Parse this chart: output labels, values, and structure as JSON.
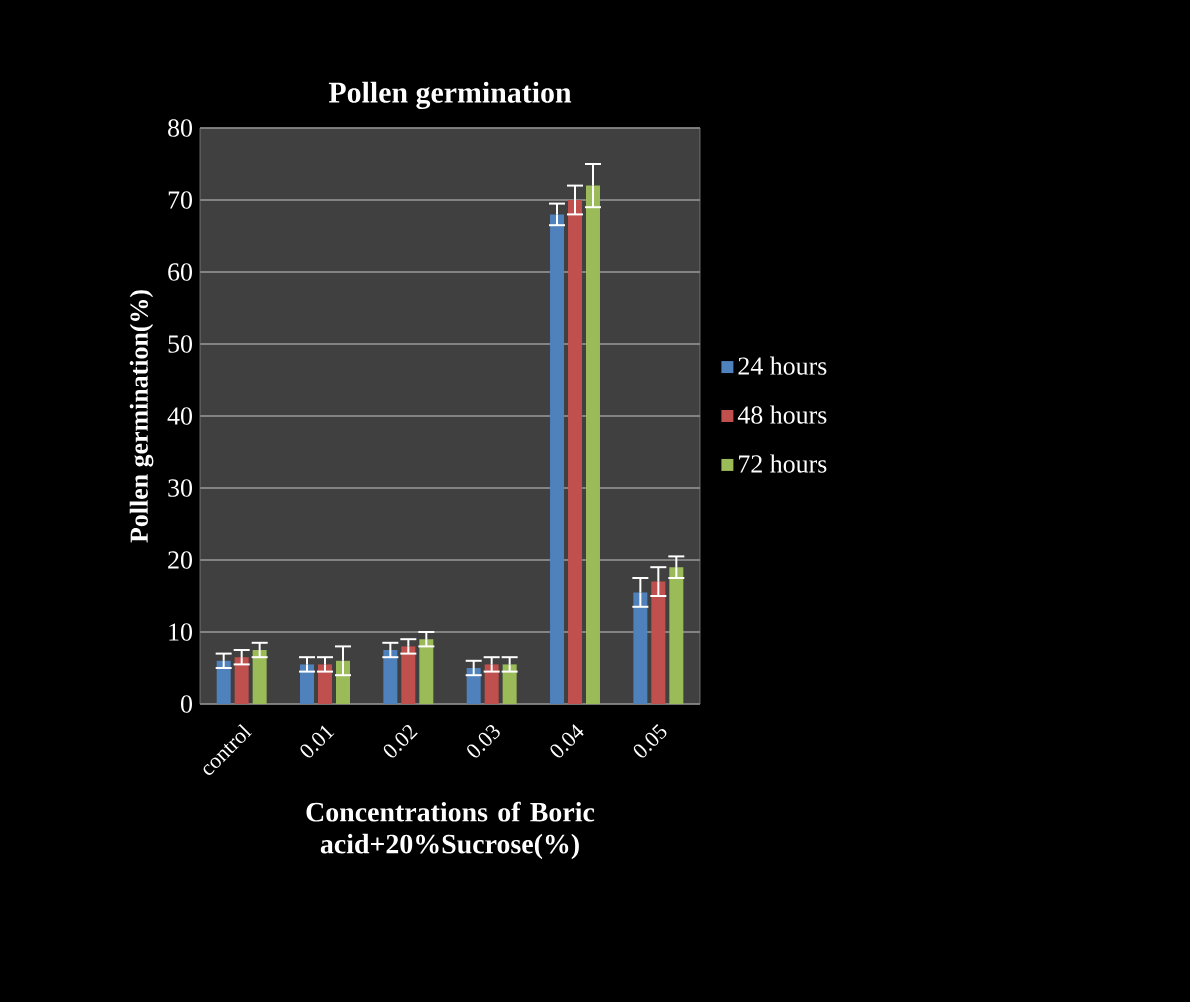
{
  "chart_data": {
    "type": "bar",
    "title": "Pollen germination",
    "xlabel": "Concentrations of Boric acid+20%Sucrose(%)",
    "ylabel": "Pollen germination(%)",
    "categories": [
      "control",
      "0.01",
      "0.02",
      "0.03",
      "0.04",
      "0.05"
    ],
    "series": [
      {
        "name": "24 hours",
        "color": "#4f81bd",
        "values": [
          6,
          5.5,
          7.5,
          5,
          68,
          15.5
        ],
        "errors": [
          1,
          1,
          1,
          1,
          1.5,
          2
        ]
      },
      {
        "name": "48 hours",
        "color": "#c0504d",
        "values": [
          6.5,
          5.5,
          8,
          5.5,
          70,
          17
        ],
        "errors": [
          1,
          1,
          1,
          1,
          2,
          2
        ]
      },
      {
        "name": "72 hours",
        "color": "#9bbb59",
        "values": [
          7.5,
          6,
          9,
          5.5,
          72,
          19
        ],
        "errors": [
          1,
          2,
          1,
          1,
          3,
          1.5
        ]
      }
    ],
    "ylim": [
      0,
      80
    ],
    "yticks": [
      0,
      10,
      20,
      30,
      40,
      50,
      60,
      70,
      80
    ],
    "grid": "y",
    "legend": "right"
  }
}
